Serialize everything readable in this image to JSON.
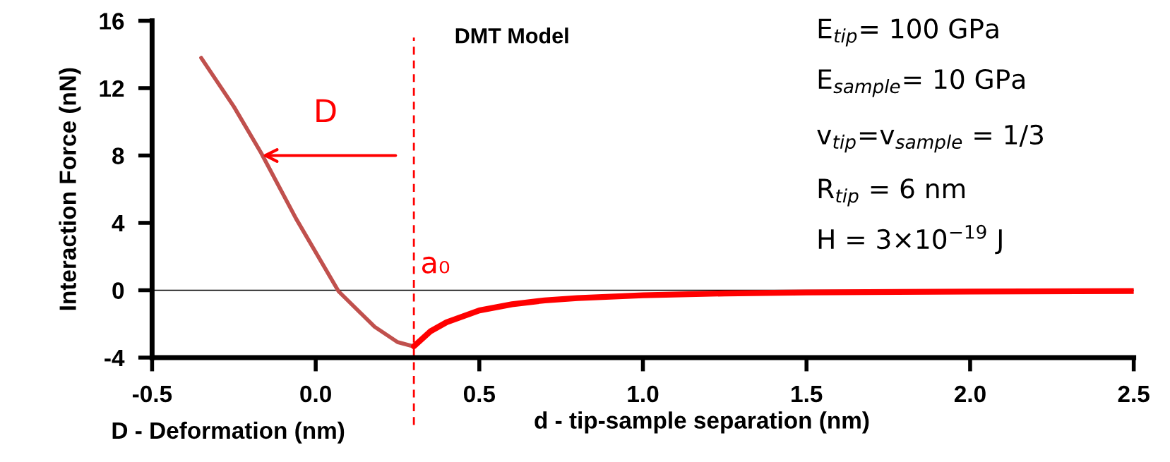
{
  "chart_data": {
    "type": "line",
    "xlabel": "d - tip-sample separation (nm)",
    "ylabel": "Interaction Force (nN)",
    "xlim": [
      -0.5,
      2.5
    ],
    "xticks": [
      -0.5,
      {
        "value": 0,
        "label": "0.0"
      },
      0.5,
      {
        "value": 1,
        "label": "1.0"
      },
      1.5,
      {
        "value": 2,
        "label": "2.0"
      },
      2.5
    ],
    "ylim": [
      -4,
      16
    ],
    "yticks": [
      {
        "value": -4,
        "label": "-4"
      },
      0,
      4,
      8,
      12,
      16
    ],
    "series": [
      {
        "color": "#c0504d",
        "x": [
          -0.35,
          -0.25,
          -0.167,
          -0.06,
          0.07,
          0.18,
          0.25,
          0.3
        ],
        "values": [
          13.8,
          10.9,
          8.16,
          4.25,
          -0.07,
          -2.17,
          -3.08,
          -3.34
        ]
      },
      {
        "color": "#ff0000",
        "x": [
          0.3,
          0.35,
          0.4,
          0.5,
          0.6,
          0.7,
          0.8,
          1.0,
          1.25,
          1.5,
          2.0,
          2.5
        ],
        "values": [
          -3.33,
          -2.45,
          -1.9,
          -1.2,
          -0.83,
          -0.6,
          -0.47,
          -0.3,
          -0.19,
          -0.13,
          -0.08,
          -0.05
        ]
      }
    ],
    "ref_lines": [
      {
        "axis": "x",
        "value": 0.3,
        "label": "a₀",
        "color": "#ff0000",
        "line_style": "dashed"
      },
      {
        "axis": "y",
        "value": 0,
        "color": "#000000",
        "line_style": "solid"
      }
    ],
    "annotations": [
      "D",
      "DMT Model",
      "E$_{tip}$= 100 GPa",
      "E$_{sample}$= 10 GPa",
      "v$_{tip}$=v$_{sample}$ = 1/3",
      "R$_{tip}$ = 6 nm",
      "H = 3×10$^{−19}$ J",
      "D - Deformation (nm)"
    ],
    "grid": false,
    "marker": "none",
    "line_style": "solid"
  }
}
